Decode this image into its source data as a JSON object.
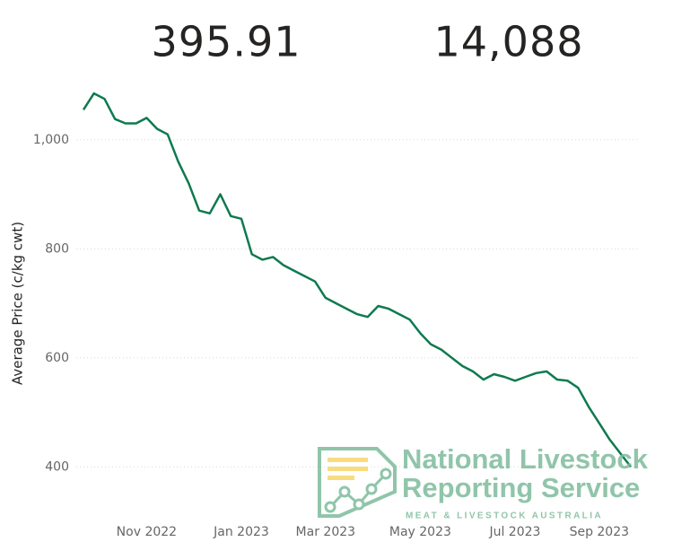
{
  "kpis": [
    "395.91",
    "14,088"
  ],
  "chart_data": {
    "type": "line",
    "ylabel": "Average Price (c/kg cwt)",
    "categories": [
      null,
      null,
      null,
      null,
      null,
      null,
      "Nov 2022",
      null,
      null,
      null,
      null,
      null,
      null,
      null,
      null,
      "Jan 2023",
      null,
      null,
      null,
      null,
      null,
      null,
      null,
      "Mar 2023",
      null,
      null,
      null,
      null,
      null,
      null,
      null,
      null,
      "May 2023",
      null,
      null,
      null,
      null,
      null,
      null,
      null,
      null,
      "Jul 2023",
      null,
      null,
      null,
      null,
      null,
      null,
      null,
      "Sep 2023",
      null,
      null,
      null
    ],
    "values": [
      1055,
      1085,
      1075,
      1038,
      1030,
      1030,
      1040,
      1020,
      1010,
      960,
      920,
      870,
      865,
      900,
      860,
      855,
      790,
      780,
      785,
      770,
      760,
      750,
      740,
      710,
      700,
      690,
      680,
      675,
      695,
      690,
      680,
      670,
      645,
      625,
      615,
      600,
      585,
      575,
      560,
      570,
      565,
      558,
      565,
      572,
      575,
      560,
      558,
      545,
      510,
      480,
      450,
      425,
      400
    ],
    "color": "#0e7a4f",
    "ylim": [
      300,
      1100
    ],
    "yticks": [
      400,
      600,
      800,
      {
        "value": 1000,
        "label": "1,000"
      }
    ],
    "grid": true
  },
  "watermark": {
    "line1": "National Livestock",
    "line2": "Reporting Service",
    "line3": "MEAT & LIVESTOCK AUSTRALIA"
  }
}
